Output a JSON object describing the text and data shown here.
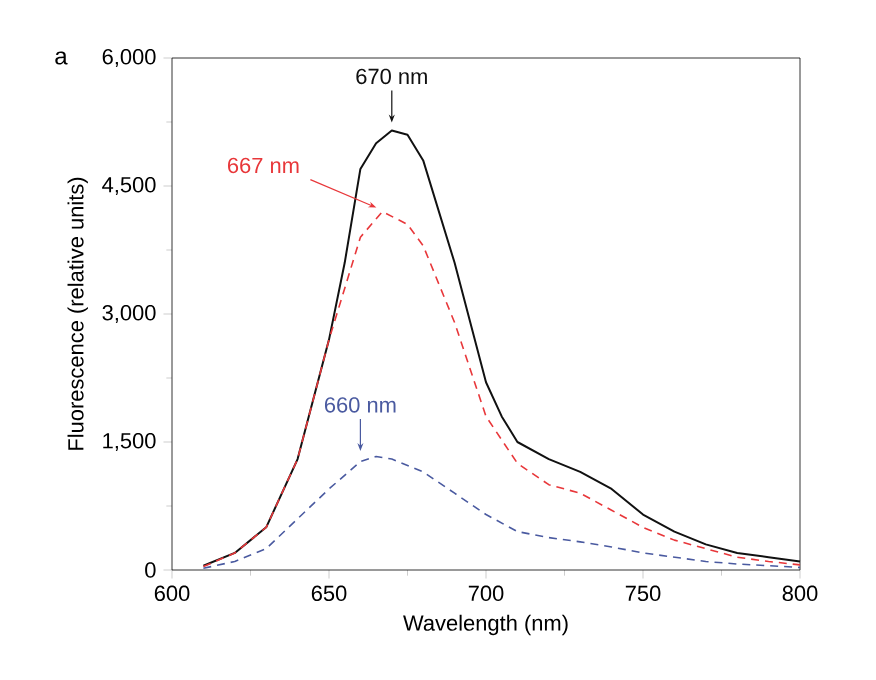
{
  "chart_data": {
    "type": "line",
    "xlabel": "Wavelength (nm)",
    "ylabel": "Fluorescence (relative units)",
    "xlim": [
      600,
      800
    ],
    "xticks": [
      600,
      650,
      700,
      750,
      800
    ],
    "ylim": [
      0,
      6000
    ],
    "yticks": [
      {
        "value": 0,
        "label": "0"
      },
      {
        "value": 1500,
        "label": "1,500"
      },
      {
        "value": 3000,
        "label": "3,000"
      },
      {
        "value": 4500,
        "label": "4,500"
      },
      {
        "value": 6000,
        "label": "6,000"
      }
    ],
    "series": [
      {
        "color": "#111111",
        "line_style": "solid",
        "x": [
          610,
          620,
          630,
          640,
          650,
          655,
          660,
          665,
          670,
          675,
          680,
          690,
          700,
          705,
          710,
          720,
          730,
          740,
          750,
          760,
          770,
          780,
          790,
          800
        ],
        "values": [
          50,
          200,
          500,
          1300,
          2700,
          3600,
          4700,
          5000,
          5150,
          5100,
          4800,
          3600,
          2200,
          1800,
          1500,
          1300,
          1150,
          950,
          650,
          450,
          300,
          200,
          150,
          100
        ]
      },
      {
        "color": "#e8373a",
        "line_style": "dashed",
        "x": [
          610,
          620,
          630,
          640,
          650,
          660,
          667,
          675,
          680,
          690,
          700,
          710,
          720,
          730,
          740,
          750,
          760,
          770,
          780,
          790,
          800
        ],
        "values": [
          40,
          200,
          500,
          1300,
          2700,
          3900,
          4200,
          4050,
          3800,
          2900,
          1800,
          1250,
          1000,
          900,
          700,
          500,
          350,
          250,
          150,
          100,
          60
        ]
      },
      {
        "color": "#4a5aa0",
        "line_style": "dashed",
        "x": [
          610,
          620,
          630,
          640,
          650,
          660,
          665,
          670,
          680,
          690,
          700,
          710,
          720,
          730,
          740,
          750,
          760,
          770,
          780,
          790,
          800
        ],
        "values": [
          20,
          100,
          250,
          600,
          950,
          1270,
          1330,
          1300,
          1150,
          900,
          650,
          450,
          380,
          330,
          270,
          200,
          150,
          100,
          70,
          50,
          30
        ]
      }
    ],
    "annotations": [
      {
        "text": "670 nm",
        "x": 670,
        "y": 5150
      },
      {
        "text": "667 nm",
        "x": 667,
        "y": 4200
      },
      {
        "text": "660 nm",
        "x": 660,
        "y": 1300
      },
      "a"
    ],
    "marker": "none"
  }
}
